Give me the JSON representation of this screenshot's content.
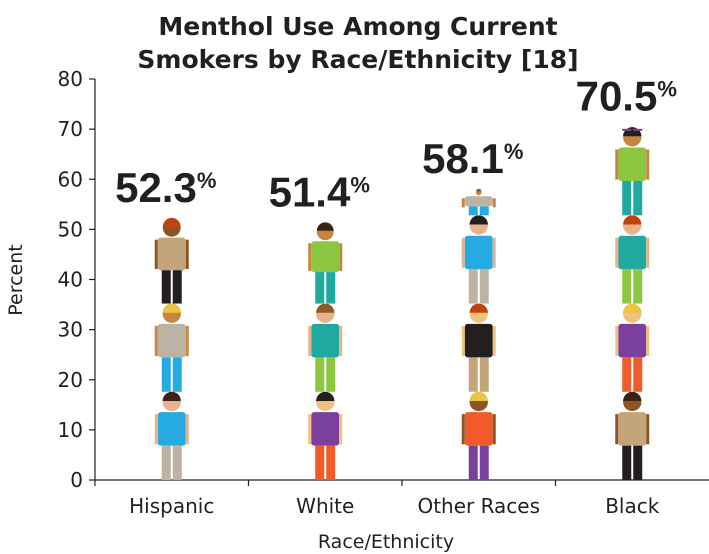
{
  "chart_data": {
    "type": "bar",
    "title_lines": [
      "Menthol Use Among Current",
      "Smokers by Race/Ethnicity [18]"
    ],
    "xlabel": "Race/Ethnicity",
    "ylabel": "Percent",
    "ylim": [
      0,
      80
    ],
    "yticks": [
      "0",
      "10",
      "20",
      "30",
      "40",
      "50",
      "60",
      "70",
      "80"
    ],
    "categories": [
      "Hispanic",
      "White",
      "Other Races",
      "Black"
    ],
    "values": [
      52.3,
      51.4,
      58.1,
      70.5
    ],
    "value_labels": [
      "52.3",
      "51.4",
      "58.1",
      "70.5"
    ],
    "value_suffix": "%",
    "bar_style": "stacked person pictograms",
    "grid": false
  },
  "palette": {
    "axis": "#231f20",
    "skin": [
      "#e6b48c",
      "#c68642",
      "#8d5524",
      "#f1c27d"
    ],
    "tops": [
      "#8dc63f",
      "#27a9e1",
      "#7b3f9e",
      "#f15a29",
      "#bdb3a5",
      "#1fa9a0",
      "#231f20",
      "#c4a57a"
    ],
    "hair": [
      "#3b2314",
      "#231f20",
      "#e8c547",
      "#8a5a2b",
      "#c1440e"
    ]
  }
}
